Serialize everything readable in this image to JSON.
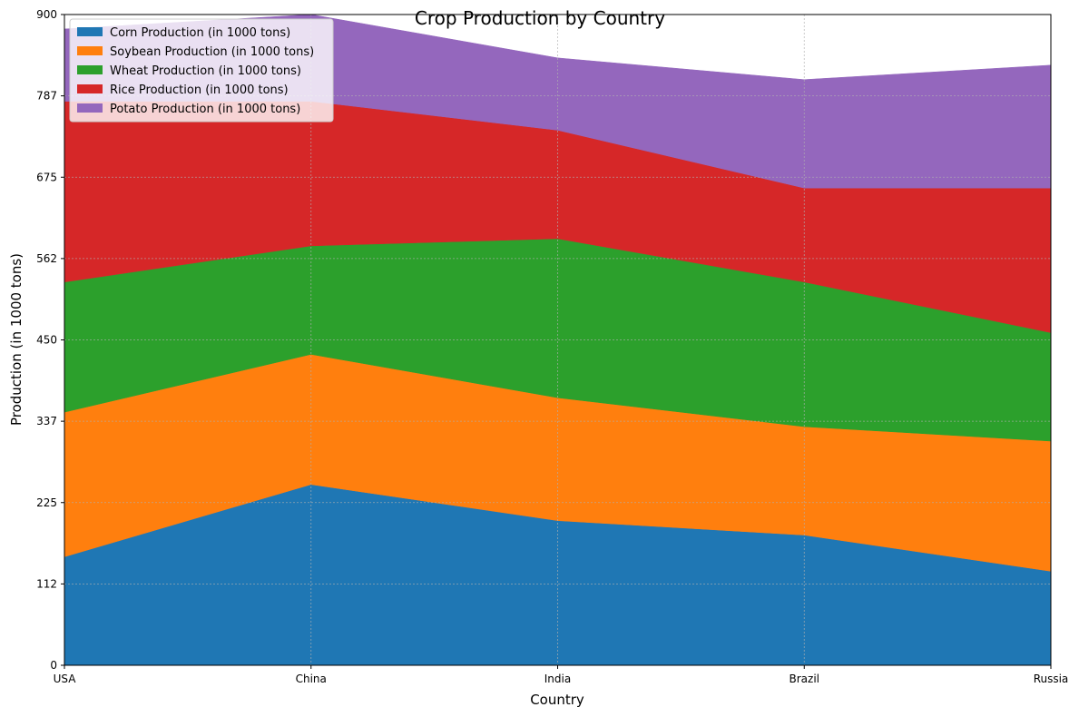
{
  "chart_data": {
    "type": "area",
    "stacked": true,
    "title": "Crop Production by Country",
    "xlabel": "Country",
    "ylabel": "Production (in 1000 tons)",
    "categories": [
      "USA",
      "China",
      "India",
      "Brazil",
      "Russia"
    ],
    "ylim": [
      0,
      900
    ],
    "yticks": [
      "0",
      "112",
      "225",
      "337",
      "450",
      "562",
      "675",
      "787",
      "900"
    ],
    "grid": true,
    "legend_position": "top-left",
    "series": [
      {
        "name": "Corn Production (in 1000 tons)",
        "values": [
          150,
          250,
          200,
          180,
          130
        ],
        "color": "#1f77b4"
      },
      {
        "name": "Soybean Production (in 1000 tons)",
        "values": [
          200,
          180,
          170,
          150,
          180
        ],
        "color": "#ff7f0e"
      },
      {
        "name": "Wheat Production (in 1000 tons)",
        "values": [
          180,
          150,
          220,
          200,
          150
        ],
        "color": "#2ca02c"
      },
      {
        "name": "Rice Production (in 1000 tons)",
        "values": [
          250,
          200,
          150,
          130,
          200
        ],
        "color": "#d62728"
      },
      {
        "name": "Potato Production (in 1000 tons)",
        "values": [
          100,
          120,
          100,
          150,
          170
        ],
        "color": "#9467bd"
      }
    ]
  }
}
